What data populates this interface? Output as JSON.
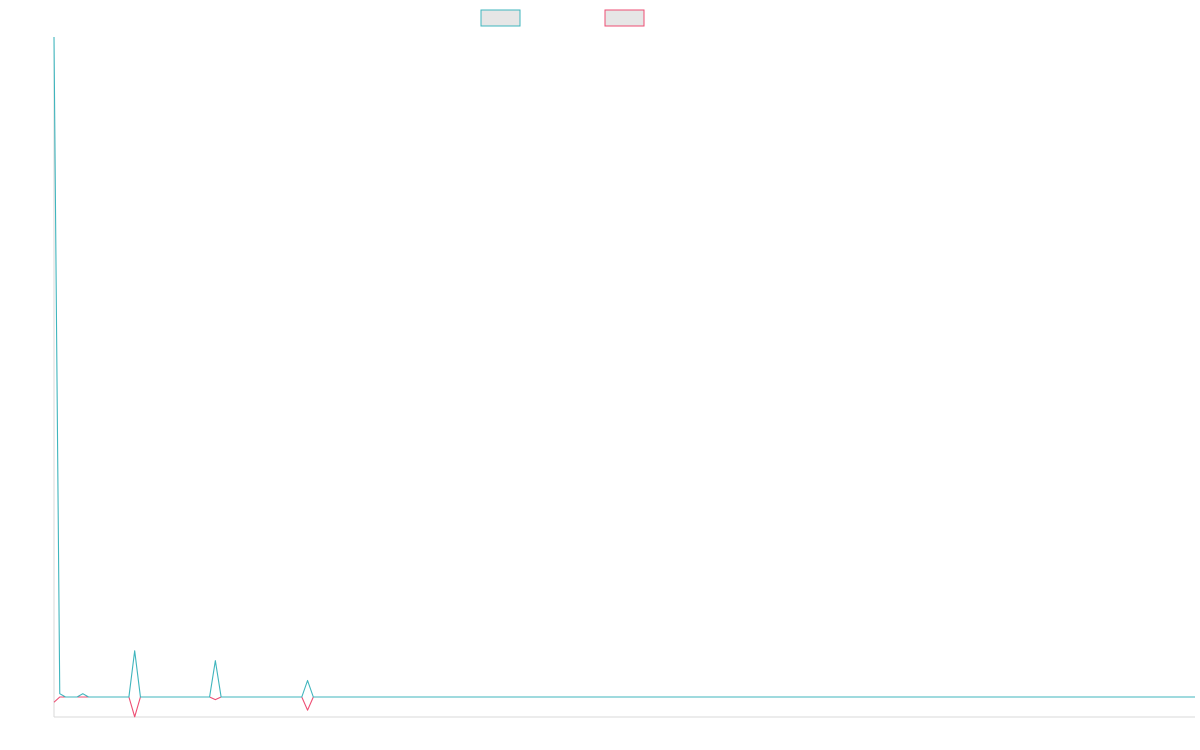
{
  "chart_data": {
    "type": "line",
    "title": "",
    "xlabel": "",
    "ylabel": "",
    "legend": {
      "placement": "top-center",
      "entries": [
        {
          "name": "",
          "color": "#3fb5bd"
        },
        {
          "name": "",
          "color": "#ee4d73"
        }
      ]
    },
    "grid": false,
    "x": [
      0,
      1,
      2,
      3,
      4,
      5,
      6,
      7,
      8,
      9,
      10,
      11,
      12,
      13,
      14,
      15,
      16,
      17,
      18,
      19,
      20,
      21,
      22,
      23,
      24,
      25,
      26,
      27,
      28,
      29,
      30,
      31,
      32,
      33,
      34,
      35,
      36,
      37,
      38,
      39,
      40,
      41,
      42,
      43,
      44,
      45,
      46,
      47,
      48,
      49,
      50,
      51,
      52,
      53,
      54,
      55,
      56,
      57,
      58,
      59,
      60,
      61,
      62,
      63,
      64,
      65,
      66,
      67,
      68,
      69,
      70,
      71,
      72,
      73,
      74,
      75,
      76,
      77,
      78,
      79,
      80,
      81,
      82,
      83,
      84,
      85,
      86,
      87,
      88,
      89,
      90,
      91,
      92,
      93,
      94,
      95,
      96,
      97,
      98,
      99,
      100,
      101,
      102,
      103,
      104,
      105,
      106,
      107,
      108,
      109,
      110,
      111,
      112,
      113,
      114,
      115,
      116,
      117,
      118,
      119,
      120,
      121,
      122,
      123,
      124,
      125,
      126,
      127,
      128,
      129,
      130,
      131,
      132,
      133,
      134,
      135,
      136,
      137,
      138,
      139,
      140,
      141,
      142,
      143,
      144,
      145,
      146,
      147,
      148,
      149,
      150,
      151,
      152,
      153,
      154,
      155,
      156,
      157,
      158,
      159,
      160,
      161,
      162,
      163,
      164,
      165,
      166,
      167,
      168,
      169,
      170,
      171,
      172,
      173,
      174,
      175,
      176,
      177,
      178,
      179,
      180,
      181,
      182,
      183,
      184,
      185,
      186,
      187,
      188,
      189,
      190,
      191,
      192,
      193,
      194,
      195,
      196,
      197,
      198
    ],
    "xlim": [
      0,
      198
    ],
    "ylim": [
      -3,
      100
    ],
    "series": [
      {
        "name": "",
        "color": "#3fb5bd",
        "values": [
          100,
          0.5,
          0,
          0,
          0,
          0.5,
          0,
          0,
          0,
          0,
          0,
          0,
          0,
          0,
          7,
          0,
          0,
          0,
          0,
          0,
          0,
          0,
          0,
          0,
          0,
          0,
          0,
          0,
          5.5,
          0,
          0,
          0,
          0,
          0,
          0,
          0,
          0,
          0,
          0,
          0,
          0,
          0,
          0,
          0,
          2.5,
          0,
          0,
          0,
          0,
          0,
          0,
          0,
          0,
          0,
          0,
          0,
          0,
          0,
          0,
          0,
          0,
          0,
          0,
          0,
          0,
          0,
          0,
          0,
          0,
          0,
          0,
          0,
          0,
          0,
          0,
          0,
          0,
          0,
          0,
          0,
          0,
          0,
          0,
          0,
          0,
          0,
          0,
          0,
          0,
          0,
          0,
          0,
          0,
          0,
          0,
          0,
          0,
          0,
          0,
          0,
          0,
          0,
          0,
          0,
          0,
          0,
          0,
          0,
          0,
          0,
          0,
          0,
          0,
          0,
          0,
          0,
          0,
          0,
          0,
          0,
          0,
          0,
          0,
          0,
          0,
          0,
          0,
          0,
          0,
          0,
          0,
          0,
          0,
          0,
          0,
          0,
          0,
          0,
          0,
          0,
          0,
          0,
          0,
          0,
          0,
          0,
          0,
          0,
          0,
          0,
          0,
          0,
          0,
          0,
          0,
          0,
          0,
          0,
          0,
          0,
          0,
          0,
          0,
          0,
          0,
          0,
          0,
          0,
          0,
          0,
          0,
          0,
          0,
          0,
          0,
          0,
          0,
          0,
          0,
          0,
          0,
          0,
          0,
          0,
          0,
          0,
          0,
          0,
          0,
          0,
          0,
          0,
          0,
          0,
          0,
          0,
          0,
          0,
          0
        ]
      },
      {
        "name": "",
        "color": "#ee4d73",
        "values": [
          -0.8,
          0,
          0,
          0,
          0,
          0,
          0,
          0,
          0,
          0,
          0,
          0,
          0,
          0,
          -3,
          0,
          0,
          0,
          0,
          0,
          0,
          0,
          0,
          0,
          0,
          0,
          0,
          0,
          -0.4,
          0,
          0,
          0,
          0,
          0,
          0,
          0,
          0,
          0,
          0,
          0,
          0,
          0,
          0,
          0,
          -2,
          0,
          0,
          0,
          0,
          0,
          0,
          0,
          0,
          0,
          0,
          0,
          0,
          0,
          0,
          0,
          0,
          0,
          0,
          0,
          0,
          0,
          0,
          0,
          0,
          0,
          0,
          0,
          0,
          0,
          0,
          0,
          0,
          0,
          0,
          0,
          0,
          0,
          0,
          0,
          0,
          0,
          0,
          0,
          0,
          0,
          0,
          0,
          0,
          0,
          0,
          0,
          0,
          0,
          0,
          0,
          0,
          0,
          0,
          0,
          0,
          0,
          0,
          0,
          0,
          0,
          0,
          0,
          0,
          0,
          0,
          0,
          0,
          0,
          0,
          0,
          0,
          0,
          0,
          0,
          0,
          0,
          0,
          0,
          0,
          0,
          0,
          0,
          0,
          0,
          0,
          0,
          0,
          0,
          0,
          0,
          0,
          0,
          0,
          0,
          0,
          0,
          0,
          0,
          0,
          0,
          0,
          0,
          0,
          0,
          0,
          0,
          0,
          0,
          0,
          0,
          0,
          0,
          0,
          0,
          0,
          0,
          0,
          0,
          0,
          0,
          0,
          0,
          0,
          0,
          0,
          0,
          0,
          0,
          0,
          0,
          0,
          0,
          0,
          0,
          0,
          0,
          0,
          0,
          0,
          0,
          0,
          0,
          0,
          0,
          0,
          0,
          0,
          0,
          0
        ]
      }
    ]
  }
}
